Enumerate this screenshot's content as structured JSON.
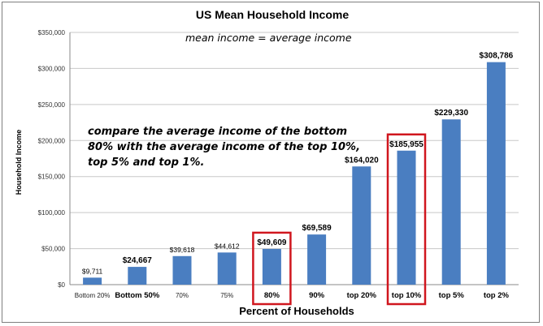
{
  "chart_data": {
    "type": "bar",
    "title": "US Mean Household Income",
    "subtitle": "mean income  =  average income",
    "xlabel": "Percent of Households",
    "ylabel": "Household Income",
    "ylim": [
      0,
      350000
    ],
    "yticks": [
      "$0",
      "$50,000",
      "$100,000",
      "$150,000",
      "$200,000",
      "$250,000",
      "$300,000",
      "$350,000"
    ],
    "grid": true,
    "bar_color": "#4a7ec1",
    "highlight_color": "#d0161e",
    "categories": [
      "Bottom 20%",
      "Bottom 50%",
      "70%",
      "75%",
      "80%",
      "90%",
      "top 20%",
      "top 10%",
      "top 5%",
      "top 2%"
    ],
    "values": [
      9711,
      24667,
      39618,
      44612,
      49609,
      69589,
      164020,
      185955,
      229330,
      308786
    ],
    "data_labels": [
      "$9,711",
      "$24,667",
      "$39,618",
      "$44,612",
      "$49,609",
      "$69,589",
      "$164,020",
      "$185,955",
      "$229,330",
      "$308,786"
    ],
    "bold_labels": [
      false,
      true,
      false,
      false,
      true,
      true,
      true,
      true,
      true,
      true
    ],
    "highlighted": [
      "80%",
      "top 10%"
    ],
    "annotation_lines": [
      "compare the average income of the bottom",
      "80% with the average income of the top 10%,",
      "top 5% and top 1%."
    ]
  }
}
